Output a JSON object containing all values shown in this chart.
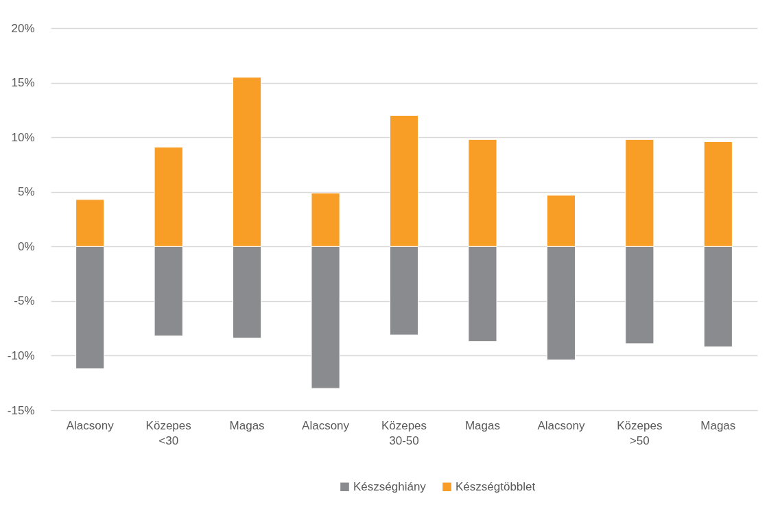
{
  "chart_data": {
    "type": "bar",
    "stacked": true,
    "categories": [
      "Alacsony",
      "Közepes",
      "Magas",
      "Alacsony",
      "Közepes",
      "Magas",
      "Alacsony",
      "Közepes",
      "Magas"
    ],
    "series": [
      {
        "name": "Készséghiány",
        "color": "#8a8b8f",
        "values": [
          -11.2,
          -8.2,
          -8.4,
          -13.0,
          -8.1,
          -8.7,
          -10.4,
          -8.9,
          -9.2
        ]
      },
      {
        "name": "Készségtöbblet",
        "color": "#f89d25",
        "values": [
          4.3,
          9.1,
          15.5,
          4.9,
          12.0,
          9.8,
          4.7,
          9.8,
          9.6
        ]
      }
    ],
    "ylim": [
      -15,
      20
    ],
    "yticks": [
      {
        "value": -15,
        "label": "-15%"
      },
      {
        "value": -10,
        "label": "-10%"
      },
      {
        "value": -5,
        "label": "-5%"
      },
      {
        "value": 0,
        "label": "0%"
      },
      {
        "value": 5,
        "label": "5%"
      },
      {
        "value": 10,
        "label": "10%"
      },
      {
        "value": 15,
        "label": "15%"
      },
      {
        "value": 20,
        "label": "20%"
      }
    ],
    "grid": "y",
    "legend": "bottom",
    "annotations": [
      "<30",
      "30-50",
      ">50"
    ]
  }
}
